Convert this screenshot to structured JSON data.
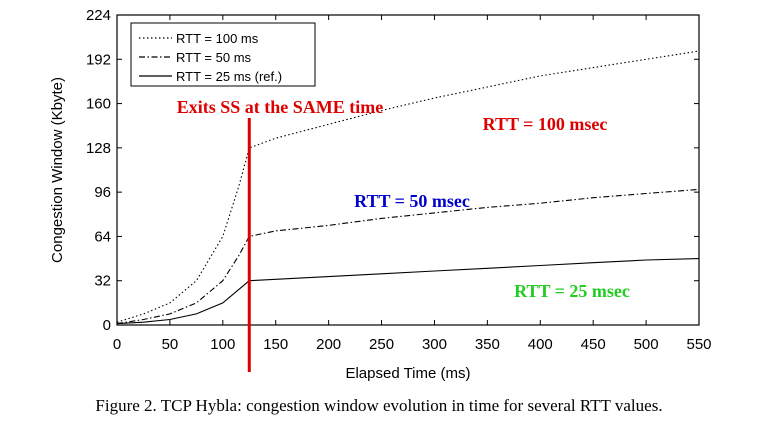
{
  "chart_data": {
    "type": "line",
    "xlabel": "Elapsed Time (ms)",
    "ylabel": "Congestion Window (Kbyte)",
    "xlim": [
      0,
      550
    ],
    "ylim": [
      0,
      224
    ],
    "xticks": [
      0,
      50,
      100,
      150,
      200,
      250,
      300,
      350,
      400,
      450,
      500,
      550
    ],
    "yticks": [
      0,
      32,
      64,
      96,
      128,
      160,
      192,
      224
    ],
    "grid": false,
    "legend_position": "top-left",
    "series": [
      {
        "name": "RTT = 100 ms",
        "style": "dotted",
        "x": [
          0,
          25,
          50,
          75,
          100,
          115,
          125,
          150,
          200,
          250,
          300,
          350,
          400,
          450,
          500,
          550
        ],
        "y": [
          2,
          8,
          16,
          32,
          64,
          100,
          128,
          135,
          145,
          155,
          164,
          172,
          180,
          186,
          192,
          198
        ]
      },
      {
        "name": "RTT = 50 ms",
        "style": "dash-dot",
        "x": [
          0,
          25,
          50,
          75,
          100,
          115,
          125,
          150,
          200,
          250,
          300,
          350,
          400,
          450,
          500,
          550
        ],
        "y": [
          1,
          4,
          8,
          16,
          32,
          50,
          64,
          68,
          72,
          77,
          81,
          85,
          88,
          92,
          95,
          98
        ]
      },
      {
        "name": "RTT = 25 ms (ref.)",
        "style": "solid",
        "x": [
          0,
          25,
          50,
          75,
          100,
          125,
          150,
          200,
          250,
          300,
          350,
          400,
          450,
          500,
          550
        ],
        "y": [
          1,
          2,
          4,
          8,
          16,
          32,
          33,
          35,
          37,
          39,
          41,
          43,
          45,
          47,
          48
        ]
      }
    ],
    "annotations": [
      {
        "text": "Exits SS at the SAME time",
        "color": "#dd0000"
      },
      {
        "text": "RTT = 100 msec",
        "color": "#dd0000"
      },
      {
        "text": "RTT = 50 msec",
        "color": "#0000cc"
      },
      {
        "text": "RTT = 25 msec",
        "color": "#22cc22"
      }
    ],
    "marker_line_x": 125,
    "marker_line_color": "#dd0000"
  },
  "caption": "Figure 2.  TCP Hybla: congestion window evolution in time for several RTT values."
}
